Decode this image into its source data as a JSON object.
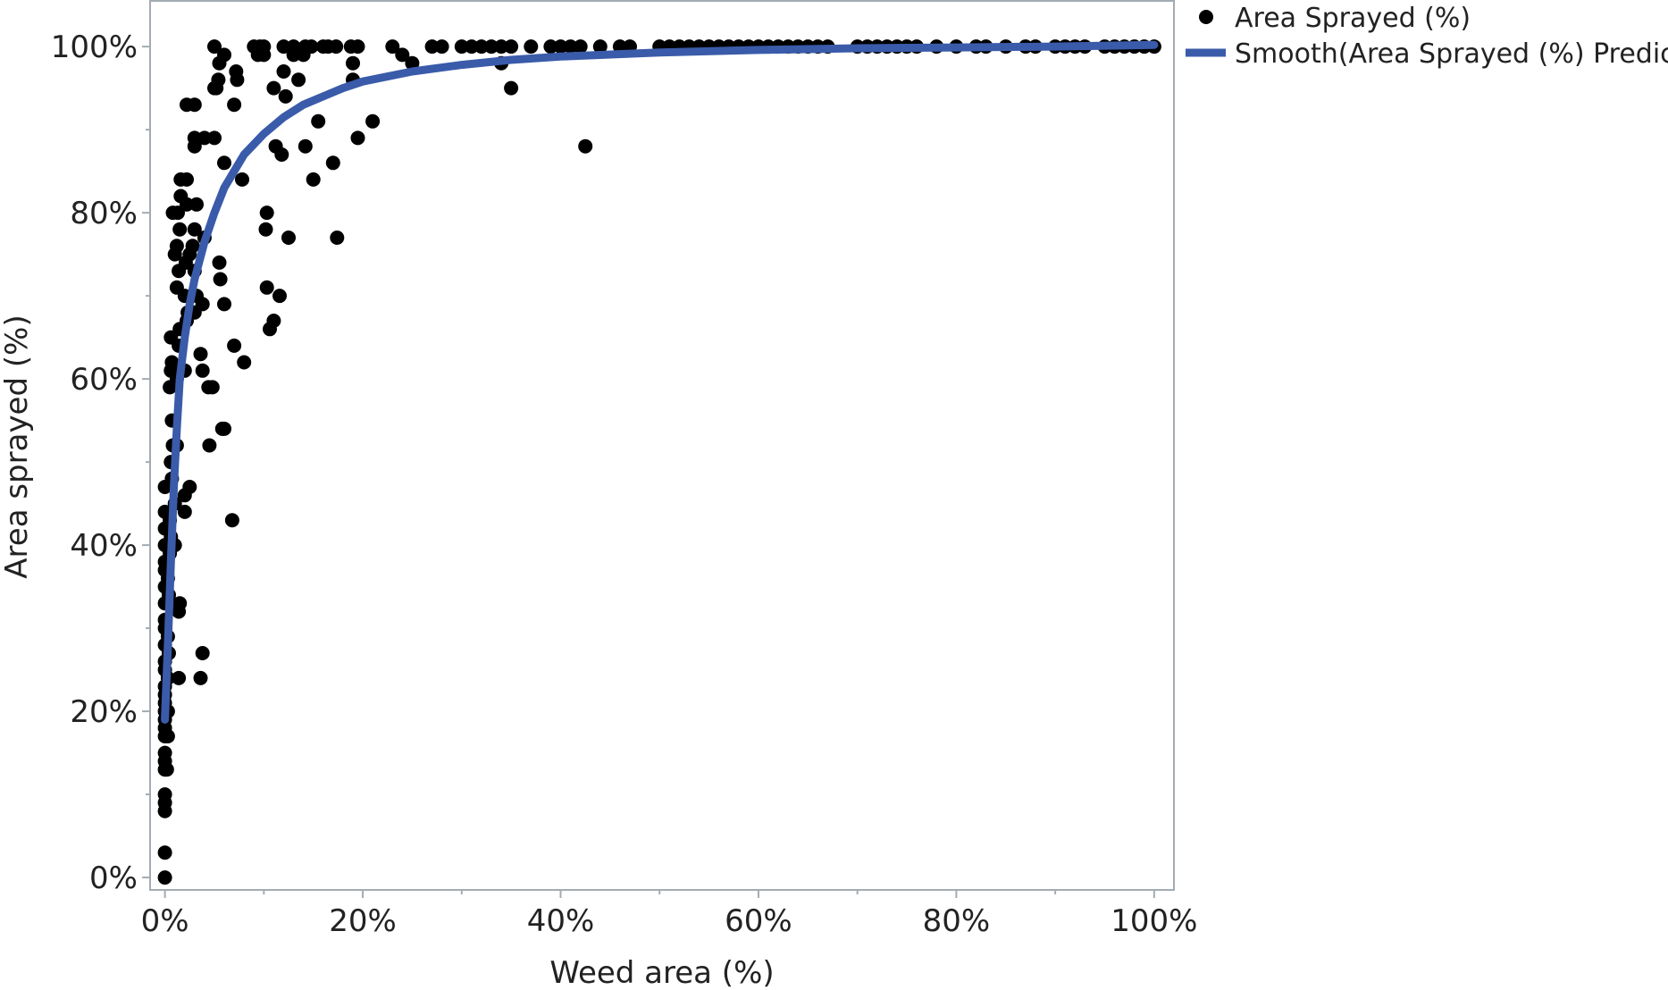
{
  "chart_data": {
    "type": "scatter",
    "xlabel": "Weed area (%)",
    "ylabel": "Area sprayed (%)",
    "xlim": [
      -1.5,
      102
    ],
    "ylim": [
      -1.5,
      105.5
    ],
    "x_ticks": [
      0,
      20,
      40,
      60,
      80,
      100
    ],
    "y_ticks": [
      0,
      20,
      40,
      60,
      80,
      100
    ],
    "x_tick_labels": [
      "0%",
      "20%",
      "40%",
      "60%",
      "80%",
      "100%"
    ],
    "y_tick_labels": [
      "0%",
      "20%",
      "40%",
      "60%",
      "80%",
      "100%"
    ],
    "grid": false,
    "legend_position": "top-right-outside",
    "colors": {
      "points": "#000000",
      "smooth": "#3a5ba9",
      "frame": "#a3acb2"
    },
    "series": [
      {
        "name": "Area Sprayed (%)",
        "kind": "points",
        "points": [
          [
            0,
            0
          ],
          [
            0,
            3
          ],
          [
            0,
            8
          ],
          [
            0,
            9
          ],
          [
            0,
            10
          ],
          [
            0,
            13
          ],
          [
            0,
            14
          ],
          [
            0,
            15
          ],
          [
            0,
            17
          ],
          [
            0,
            18
          ],
          [
            0,
            19
          ],
          [
            0,
            20
          ],
          [
            0,
            21
          ],
          [
            0,
            22
          ],
          [
            0,
            23
          ],
          [
            0,
            25
          ],
          [
            0,
            26
          ],
          [
            0,
            28
          ],
          [
            0,
            30
          ],
          [
            0,
            31
          ],
          [
            0,
            33
          ],
          [
            0,
            35
          ],
          [
            0,
            37
          ],
          [
            0,
            38
          ],
          [
            0,
            40
          ],
          [
            0,
            42
          ],
          [
            0,
            44
          ],
          [
            0,
            47
          ],
          [
            0.2,
            13
          ],
          [
            0.3,
            17
          ],
          [
            0.3,
            20
          ],
          [
            0.3,
            24
          ],
          [
            0.4,
            27
          ],
          [
            0.3,
            29
          ],
          [
            0.4,
            34
          ],
          [
            0.3,
            36
          ],
          [
            0.5,
            39
          ],
          [
            0.6,
            41
          ],
          [
            0.5,
            43
          ],
          [
            0.7,
            48
          ],
          [
            0.6,
            50
          ],
          [
            0.8,
            52
          ],
          [
            0.7,
            55
          ],
          [
            0.5,
            59
          ],
          [
            0.6,
            61
          ],
          [
            0.7,
            62
          ],
          [
            0.6,
            65
          ],
          [
            0.8,
            80
          ],
          [
            1,
            40
          ],
          [
            1,
            45
          ],
          [
            1.2,
            52
          ],
          [
            1.2,
            60
          ],
          [
            1.4,
            64
          ],
          [
            1.5,
            66
          ],
          [
            1.2,
            71
          ],
          [
            1.4,
            73
          ],
          [
            1,
            75
          ],
          [
            1.2,
            76
          ],
          [
            1.5,
            78
          ],
          [
            1.3,
            80
          ],
          [
            1.6,
            82
          ],
          [
            1.6,
            84
          ],
          [
            1.5,
            33
          ],
          [
            1.4,
            32
          ],
          [
            1.4,
            24
          ],
          [
            2,
            44
          ],
          [
            2,
            46
          ],
          [
            2,
            61
          ],
          [
            2.2,
            67
          ],
          [
            2.3,
            68
          ],
          [
            2,
            70
          ],
          [
            2.1,
            74
          ],
          [
            2.5,
            75
          ],
          [
            2.2,
            81
          ],
          [
            2.2,
            84
          ],
          [
            2.5,
            47
          ],
          [
            2.2,
            93
          ],
          [
            3,
            68
          ],
          [
            3.2,
            70
          ],
          [
            3,
            73
          ],
          [
            2.8,
            76
          ],
          [
            3,
            78
          ],
          [
            3.2,
            81
          ],
          [
            3,
            88
          ],
          [
            3,
            89
          ],
          [
            3,
            93
          ],
          [
            3.6,
            24
          ],
          [
            3.8,
            27
          ],
          [
            3.8,
            61
          ],
          [
            3.6,
            63
          ],
          [
            3.8,
            69
          ],
          [
            4,
            77
          ],
          [
            4,
            89
          ],
          [
            4.4,
            59
          ],
          [
            4.8,
            59
          ],
          [
            4.5,
            52
          ],
          [
            5,
            100
          ],
          [
            5,
            95
          ],
          [
            5,
            89
          ],
          [
            5.2,
            95
          ],
          [
            5.5,
            98
          ],
          [
            5.4,
            96
          ],
          [
            5.5,
            74
          ],
          [
            5.6,
            72
          ],
          [
            5.8,
            54
          ],
          [
            6,
            54
          ],
          [
            6,
            69
          ],
          [
            6,
            86
          ],
          [
            6,
            99
          ],
          [
            6.8,
            43
          ],
          [
            7,
            64
          ],
          [
            7,
            93
          ],
          [
            7.2,
            97
          ],
          [
            7.3,
            96
          ],
          [
            8,
            62
          ],
          [
            7.8,
            84
          ],
          [
            9,
            100
          ],
          [
            9.4,
            99
          ],
          [
            9.6,
            100
          ],
          [
            10,
            100
          ],
          [
            10,
            99
          ],
          [
            10.3,
            71
          ],
          [
            10.2,
            78
          ],
          [
            10.3,
            80
          ],
          [
            10.6,
            66
          ],
          [
            11,
            95
          ],
          [
            11,
            67
          ],
          [
            11.2,
            88
          ],
          [
            11.6,
            70
          ],
          [
            11.8,
            87
          ],
          [
            12,
            100
          ],
          [
            12,
            97
          ],
          [
            12.2,
            94
          ],
          [
            12.5,
            77
          ],
          [
            13,
            99
          ],
          [
            13,
            100
          ],
          [
            13.5,
            96
          ],
          [
            14,
            99
          ],
          [
            14.2,
            100
          ],
          [
            14.2,
            88
          ],
          [
            14.8,
            100
          ],
          [
            15,
            84
          ],
          [
            15.5,
            91
          ],
          [
            16,
            100
          ],
          [
            16.5,
            100
          ],
          [
            17,
            86
          ],
          [
            17.3,
            100
          ],
          [
            17.4,
            77
          ],
          [
            18.8,
            100
          ],
          [
            19,
            98
          ],
          [
            19,
            96
          ],
          [
            19.5,
            100
          ],
          [
            19.5,
            89
          ],
          [
            21,
            91
          ],
          [
            23,
            100
          ],
          [
            24,
            99
          ],
          [
            25,
            98
          ],
          [
            27,
            100
          ],
          [
            28,
            100
          ],
          [
            30,
            100
          ],
          [
            31,
            100
          ],
          [
            32,
            100
          ],
          [
            33,
            100
          ],
          [
            34,
            98
          ],
          [
            34,
            100
          ],
          [
            35,
            100
          ],
          [
            35,
            95
          ],
          [
            37,
            100
          ],
          [
            39,
            100
          ],
          [
            40,
            100
          ],
          [
            41,
            100
          ],
          [
            42,
            100
          ],
          [
            42.5,
            88
          ],
          [
            44,
            100
          ],
          [
            46,
            100
          ],
          [
            47,
            100
          ],
          [
            50,
            100
          ],
          [
            51,
            100
          ],
          [
            52,
            100
          ],
          [
            53,
            100
          ],
          [
            54,
            100
          ],
          [
            55,
            100
          ],
          [
            56,
            100
          ],
          [
            57,
            100
          ],
          [
            58,
            100
          ],
          [
            59,
            100
          ],
          [
            60,
            100
          ],
          [
            61,
            100
          ],
          [
            62,
            100
          ],
          [
            63,
            100
          ],
          [
            64,
            100
          ],
          [
            65,
            100
          ],
          [
            66,
            100
          ],
          [
            67,
            100
          ],
          [
            70,
            100
          ],
          [
            71,
            100
          ],
          [
            72,
            100
          ],
          [
            73,
            100
          ],
          [
            74,
            100
          ],
          [
            75,
            100
          ],
          [
            76,
            100
          ],
          [
            78,
            100
          ],
          [
            80,
            100
          ],
          [
            82,
            100
          ],
          [
            83,
            100
          ],
          [
            85,
            100
          ],
          [
            87,
            100
          ],
          [
            88,
            100
          ],
          [
            90,
            100
          ],
          [
            91,
            100
          ],
          [
            92,
            100
          ],
          [
            93,
            100
          ],
          [
            95,
            100
          ],
          [
            96,
            100
          ],
          [
            97,
            100
          ],
          [
            98,
            100
          ],
          [
            99,
            100
          ],
          [
            100,
            100
          ]
        ]
      },
      {
        "name": "Smooth(Area Sprayed (%) Predictor)",
        "kind": "line",
        "points": [
          [
            0,
            19
          ],
          [
            0.3,
            28
          ],
          [
            0.6,
            38
          ],
          [
            0.9,
            47
          ],
          [
            1.2,
            54
          ],
          [
            1.5,
            60
          ],
          [
            2,
            65
          ],
          [
            2.5,
            69
          ],
          [
            3,
            72
          ],
          [
            4,
            76.5
          ],
          [
            5,
            80
          ],
          [
            6,
            83
          ],
          [
            7,
            85
          ],
          [
            8,
            87
          ],
          [
            10,
            89.5
          ],
          [
            12,
            91.5
          ],
          [
            14,
            93
          ],
          [
            16,
            94
          ],
          [
            18,
            95
          ],
          [
            20,
            95.8
          ],
          [
            25,
            97
          ],
          [
            30,
            97.8
          ],
          [
            35,
            98.4
          ],
          [
            40,
            98.8
          ],
          [
            50,
            99.3
          ],
          [
            60,
            99.6
          ],
          [
            70,
            99.8
          ],
          [
            80,
            99.9
          ],
          [
            90,
            100
          ],
          [
            100,
            100.2
          ]
        ]
      }
    ]
  }
}
